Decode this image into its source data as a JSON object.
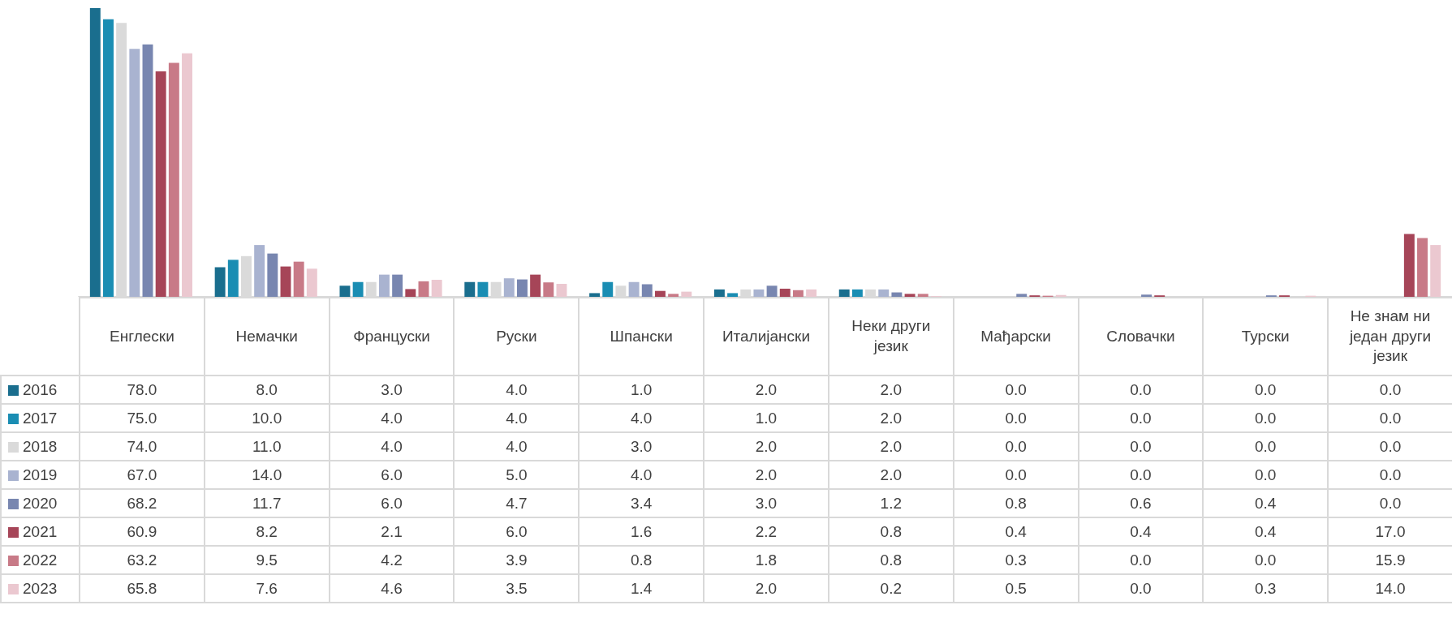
{
  "chart_data": {
    "type": "bar",
    "categories": [
      "Енглески",
      "Немачки",
      "Француски",
      "Руски",
      "Шпански",
      "Италијански",
      "Неки други језик",
      "Мађарски",
      "Словачки",
      "Турски",
      "Не знам ни један други језик"
    ],
    "series": [
      {
        "name": "2016",
        "color": "#1a6e8e",
        "values": [
          78.0,
          8.0,
          3.0,
          4.0,
          1.0,
          2.0,
          2.0,
          0.0,
          0.0,
          0.0,
          0.0
        ],
        "value_labels": [
          "78.0",
          "8.0",
          "3.0",
          "4.0",
          "1.0",
          "2.0",
          "2.0",
          "0.0",
          "0.0",
          "0.0",
          "0.0"
        ]
      },
      {
        "name": "2017",
        "color": "#1a8db3",
        "values": [
          75.0,
          10.0,
          4.0,
          4.0,
          4.0,
          1.0,
          2.0,
          0.0,
          0.0,
          0.0,
          0.0
        ],
        "value_labels": [
          "75.0",
          "10.0",
          "4.0",
          "4.0",
          "4.0",
          "1.0",
          "2.0",
          "0.0",
          "0.0",
          "0.0",
          "0.0"
        ]
      },
      {
        "name": "2018",
        "color": "#dadada",
        "values": [
          74.0,
          11.0,
          4.0,
          4.0,
          3.0,
          2.0,
          2.0,
          0.0,
          0.0,
          0.0,
          0.0
        ],
        "value_labels": [
          "74.0",
          "11.0",
          "4.0",
          "4.0",
          "3.0",
          "2.0",
          "2.0",
          "0.0",
          "0.0",
          "0.0",
          "0.0"
        ]
      },
      {
        "name": "2019",
        "color": "#a9b3d0",
        "values": [
          67.0,
          14.0,
          6.0,
          5.0,
          4.0,
          2.0,
          2.0,
          0.0,
          0.0,
          0.0,
          0.0
        ],
        "value_labels": [
          "67.0",
          "14.0",
          "6.0",
          "5.0",
          "4.0",
          "2.0",
          "2.0",
          "0.0",
          "0.0",
          "0.0",
          "0.0"
        ]
      },
      {
        "name": "2020",
        "color": "#7886b0",
        "values": [
          68.2,
          11.7,
          6.0,
          4.7,
          3.4,
          3.0,
          1.2,
          0.8,
          0.6,
          0.4,
          0.0
        ],
        "value_labels": [
          "68.2",
          "11.7",
          "6.0",
          "4.7",
          "3.4",
          "3.0",
          "1.2",
          "0.8",
          "0.6",
          "0.4",
          "0.0"
        ]
      },
      {
        "name": "2021",
        "color": "#a64558",
        "values": [
          60.9,
          8.2,
          2.1,
          6.0,
          1.6,
          2.2,
          0.8,
          0.4,
          0.4,
          0.4,
          17.0
        ],
        "value_labels": [
          "60.9",
          "8.2",
          "2.1",
          "6.0",
          "1.6",
          "2.2",
          "0.8",
          "0.4",
          "0.4",
          "0.4",
          "17.0"
        ]
      },
      {
        "name": "2022",
        "color": "#c87a87",
        "values": [
          63.2,
          9.5,
          4.2,
          3.9,
          0.8,
          1.8,
          0.8,
          0.3,
          0.0,
          0.0,
          15.9
        ],
        "value_labels": [
          "63.2",
          "9.5",
          "4.2",
          "3.9",
          "0.8",
          "1.8",
          "0.8",
          "0.3",
          "0.0",
          "0.0",
          "15.9"
        ]
      },
      {
        "name": "2023",
        "color": "#ebc8d0",
        "values": [
          65.8,
          7.6,
          4.6,
          3.5,
          1.4,
          2.0,
          0.2,
          0.5,
          0.0,
          0.3,
          14.0
        ],
        "value_labels": [
          "65.8",
          "7.6",
          "4.6",
          "3.5",
          "1.4",
          "2.0",
          "0.2",
          "0.5",
          "0.0",
          "0.3",
          "14.0"
        ]
      }
    ],
    "legend": "bottom"
  }
}
